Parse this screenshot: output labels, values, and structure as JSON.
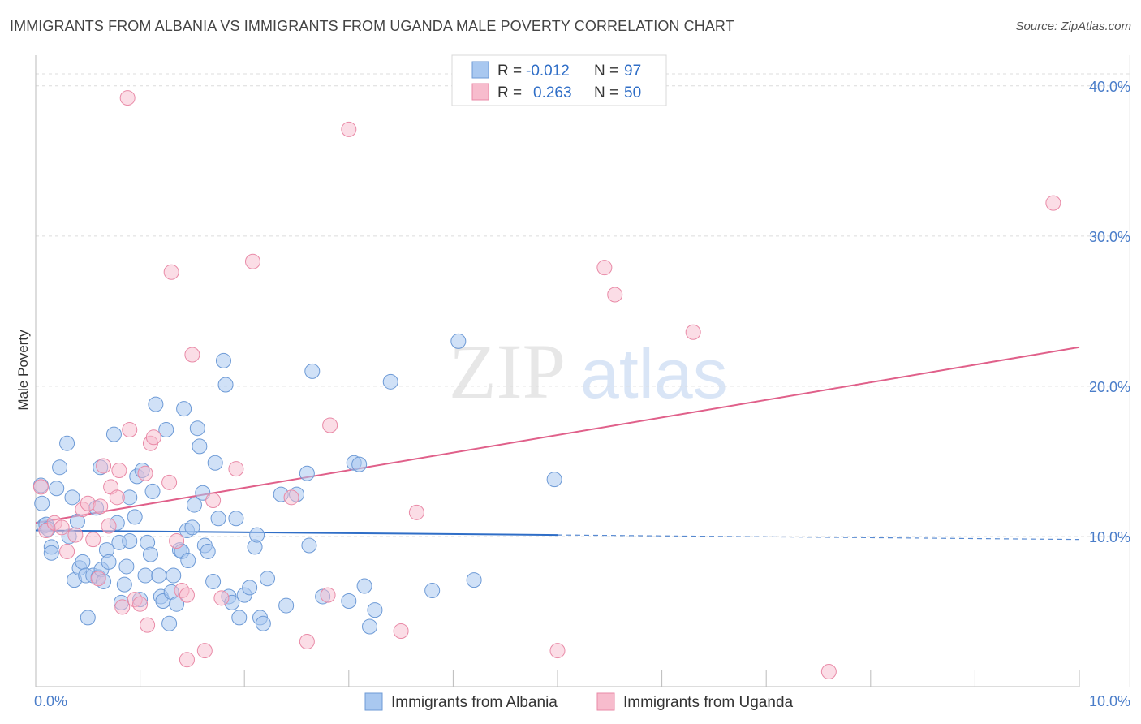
{
  "title": "IMMIGRANTS FROM ALBANIA VS IMMIGRANTS FROM UGANDA MALE POVERTY CORRELATION CHART",
  "source": "Source: ZipAtlas.com",
  "watermark": {
    "zip": "ZIP",
    "atlas": "atlas"
  },
  "colors": {
    "albania_fill": "#a9c8f0",
    "albania_stroke": "#6d9ad6",
    "albania_line": "#2f6ec7",
    "uganda_fill": "#f7bccd",
    "uganda_stroke": "#e98aa7",
    "uganda_line": "#e0608a",
    "tick_label": "#4a7dc9",
    "grid": "#dcdcdc"
  },
  "legend": {
    "rows": [
      {
        "r_label": "R =",
        "r_value": "-0.012",
        "n_label": "N =",
        "n_value": "97"
      },
      {
        "r_label": "R =",
        "r_value": "0.263",
        "n_label": "N =",
        "n_value": "50"
      }
    ]
  },
  "chart_data": {
    "type": "scatter",
    "title": "IMMIGRANTS FROM ALBANIA VS IMMIGRANTS FROM UGANDA MALE POVERTY CORRELATION CHART",
    "xlabel": "",
    "ylabel": "Male Poverty",
    "xlim": [
      0,
      10
    ],
    "ylim": [
      0,
      41.5
    ],
    "x_tick_labels": [
      {
        "value": 0,
        "label": "0.0%"
      },
      {
        "value": 10,
        "label": "10.0%"
      }
    ],
    "y_tick_labels": [
      {
        "value": 10,
        "label": "10.0%"
      },
      {
        "value": 20,
        "label": "20.0%"
      },
      {
        "value": 30,
        "label": "30.0%"
      },
      {
        "value": 40,
        "label": "40.0%"
      }
    ],
    "grid": true,
    "legend_position": "bottom",
    "series": [
      {
        "name": "Immigrants from Albania",
        "r": -0.012,
        "n": 97,
        "trend": {
          "x0": 0,
          "y0": 10.4,
          "x1": 5,
          "y1": 10.1,
          "dashed_to_x": 10,
          "dashed_to_y": 9.8
        },
        "points": [
          [
            0.05,
            13.4
          ],
          [
            0.06,
            12.2
          ],
          [
            0.08,
            10.7
          ],
          [
            0.1,
            10.8
          ],
          [
            0.12,
            10.5
          ],
          [
            0.15,
            9.3
          ],
          [
            0.15,
            8.9
          ],
          [
            0.2,
            13.2
          ],
          [
            0.23,
            14.6
          ],
          [
            0.3,
            16.2
          ],
          [
            0.32,
            10.0
          ],
          [
            0.35,
            12.6
          ],
          [
            0.37,
            7.1
          ],
          [
            0.4,
            11.0
          ],
          [
            0.42,
            7.9
          ],
          [
            0.45,
            8.3
          ],
          [
            0.48,
            7.4
          ],
          [
            0.5,
            4.6
          ],
          [
            0.55,
            7.4
          ],
          [
            0.58,
            11.9
          ],
          [
            0.6,
            7.3
          ],
          [
            0.62,
            14.6
          ],
          [
            0.63,
            7.8
          ],
          [
            0.65,
            7.0
          ],
          [
            0.68,
            9.1
          ],
          [
            0.7,
            8.3
          ],
          [
            0.75,
            16.8
          ],
          [
            0.78,
            10.9
          ],
          [
            0.8,
            9.6
          ],
          [
            0.82,
            5.6
          ],
          [
            0.85,
            6.8
          ],
          [
            0.87,
            8.0
          ],
          [
            0.9,
            9.7
          ],
          [
            0.9,
            12.6
          ],
          [
            0.95,
            11.3
          ],
          [
            0.97,
            14.0
          ],
          [
            1.0,
            5.8
          ],
          [
            1.02,
            14.4
          ],
          [
            1.05,
            7.4
          ],
          [
            1.07,
            9.6
          ],
          [
            1.1,
            8.8
          ],
          [
            1.12,
            13.0
          ],
          [
            1.15,
            18.8
          ],
          [
            1.18,
            7.4
          ],
          [
            1.2,
            6.0
          ],
          [
            1.22,
            5.7
          ],
          [
            1.25,
            17.1
          ],
          [
            1.28,
            4.2
          ],
          [
            1.3,
            6.3
          ],
          [
            1.32,
            7.4
          ],
          [
            1.35,
            5.5
          ],
          [
            1.38,
            9.1
          ],
          [
            1.4,
            9.0
          ],
          [
            1.42,
            18.5
          ],
          [
            1.45,
            10.4
          ],
          [
            1.46,
            8.4
          ],
          [
            1.5,
            10.6
          ],
          [
            1.52,
            12.1
          ],
          [
            1.55,
            17.2
          ],
          [
            1.57,
            16.0
          ],
          [
            1.6,
            12.9
          ],
          [
            1.62,
            9.4
          ],
          [
            1.65,
            9.0
          ],
          [
            1.7,
            7.0
          ],
          [
            1.72,
            14.9
          ],
          [
            1.75,
            11.2
          ],
          [
            1.8,
            21.7
          ],
          [
            1.82,
            20.1
          ],
          [
            1.85,
            6.0
          ],
          [
            1.88,
            5.6
          ],
          [
            1.92,
            11.2
          ],
          [
            1.95,
            4.6
          ],
          [
            2.0,
            6.1
          ],
          [
            2.05,
            6.6
          ],
          [
            2.1,
            9.3
          ],
          [
            2.12,
            10.1
          ],
          [
            2.15,
            4.6
          ],
          [
            2.18,
            4.2
          ],
          [
            2.22,
            7.2
          ],
          [
            2.35,
            12.8
          ],
          [
            2.4,
            5.4
          ],
          [
            2.5,
            12.8
          ],
          [
            2.6,
            14.2
          ],
          [
            2.62,
            9.4
          ],
          [
            2.65,
            21.0
          ],
          [
            2.75,
            6.0
          ],
          [
            3.0,
            5.7
          ],
          [
            3.05,
            14.9
          ],
          [
            3.1,
            14.8
          ],
          [
            3.15,
            6.7
          ],
          [
            3.2,
            4.0
          ],
          [
            3.25,
            5.1
          ],
          [
            3.4,
            20.3
          ],
          [
            3.8,
            6.4
          ],
          [
            4.2,
            7.1
          ],
          [
            4.97,
            13.8
          ],
          [
            4.05,
            23.0
          ]
        ]
      },
      {
        "name": "Immigrants from Uganda",
        "r": 0.263,
        "n": 50,
        "trend": {
          "x0": 0,
          "y0": 10.9,
          "x1": 10,
          "y1": 22.6
        },
        "points": [
          [
            0.05,
            13.3
          ],
          [
            0.1,
            10.4
          ],
          [
            0.18,
            10.9
          ],
          [
            0.25,
            10.6
          ],
          [
            0.3,
            9.0
          ],
          [
            0.38,
            10.1
          ],
          [
            0.45,
            11.8
          ],
          [
            0.5,
            12.2
          ],
          [
            0.55,
            9.8
          ],
          [
            0.6,
            7.2
          ],
          [
            0.62,
            12.0
          ],
          [
            0.65,
            14.7
          ],
          [
            0.7,
            10.7
          ],
          [
            0.72,
            13.3
          ],
          [
            0.78,
            12.6
          ],
          [
            0.8,
            14.4
          ],
          [
            0.83,
            5.3
          ],
          [
            0.88,
            39.2
          ],
          [
            0.9,
            17.1
          ],
          [
            0.95,
            5.8
          ],
          [
            1.0,
            5.5
          ],
          [
            1.05,
            14.2
          ],
          [
            1.07,
            4.1
          ],
          [
            1.1,
            16.2
          ],
          [
            1.13,
            16.6
          ],
          [
            1.28,
            13.6
          ],
          [
            1.3,
            27.6
          ],
          [
            1.35,
            9.7
          ],
          [
            1.4,
            6.4
          ],
          [
            1.45,
            6.1
          ],
          [
            1.45,
            1.8
          ],
          [
            1.5,
            22.1
          ],
          [
            1.62,
            2.4
          ],
          [
            1.7,
            12.4
          ],
          [
            1.78,
            5.9
          ],
          [
            1.92,
            14.5
          ],
          [
            2.08,
            28.3
          ],
          [
            2.45,
            12.6
          ],
          [
            2.6,
            3.0
          ],
          [
            2.8,
            6.1
          ],
          [
            2.82,
            17.4
          ],
          [
            3.0,
            37.1
          ],
          [
            3.5,
            3.7
          ],
          [
            3.65,
            11.6
          ],
          [
            5.0,
            2.4
          ],
          [
            5.45,
            27.9
          ],
          [
            5.55,
            26.1
          ],
          [
            6.3,
            23.6
          ],
          [
            7.6,
            1.0
          ],
          [
            9.75,
            32.2
          ]
        ]
      }
    ]
  },
  "bottom_legend": [
    {
      "label": "Immigrants from Albania"
    },
    {
      "label": "Immigrants from Uganda"
    }
  ]
}
